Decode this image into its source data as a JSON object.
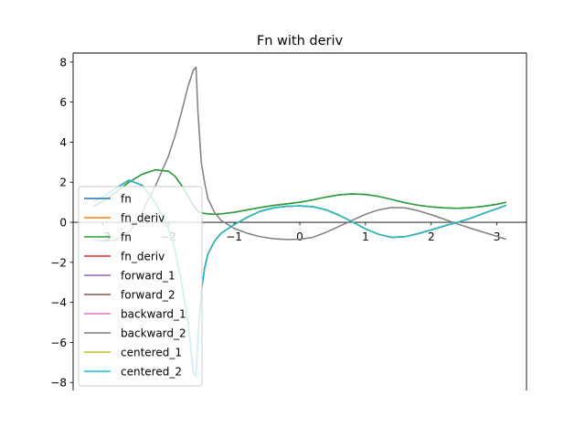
{
  "chart_data": {
    "type": "line",
    "title": "Fn with deriv",
    "xlabel": "",
    "ylabel": "",
    "xlim": [
      -3.45,
      3.45
    ],
    "ylim": [
      -8.4,
      8.45
    ],
    "xticks": [
      -3,
      -2,
      -1,
      0,
      1,
      2,
      3
    ],
    "yticks": [
      -8,
      -6,
      -4,
      -2,
      0,
      2,
      4,
      6,
      8
    ],
    "xtick_labels": [
      "−3",
      "−2",
      "−1",
      "0",
      "1",
      "2",
      "3"
    ],
    "ytick_labels": [
      "−8",
      "−6",
      "−4",
      "−2",
      "0",
      "2",
      "4",
      "6",
      "8"
    ],
    "spines": "centered at origin",
    "grid": false,
    "legend_position": "lower-left",
    "x": [
      -3.14,
      -3.0,
      -2.8,
      -2.6,
      -2.4,
      -2.2,
      -2.0,
      -1.9,
      -1.8,
      -1.7,
      -1.62,
      -1.58,
      -1.55,
      -1.5,
      -1.45,
      -1.4,
      -1.3,
      -1.2,
      -1.0,
      -0.8,
      -0.6,
      -0.4,
      -0.2,
      0.0,
      0.2,
      0.4,
      0.6,
      0.8,
      1.0,
      1.2,
      1.4,
      1.6,
      1.8,
      2.0,
      2.2,
      2.4,
      2.6,
      2.8,
      3.0,
      3.14
    ],
    "series": [
      {
        "name": "fn",
        "color": "#1f77b4",
        "values": [
          0.8,
          1.05,
          1.5,
          2.0,
          2.4,
          2.62,
          2.55,
          2.3,
          1.85,
          1.3,
          0.85,
          0.65,
          0.55,
          0.48,
          0.44,
          0.42,
          0.4,
          0.42,
          0.5,
          0.62,
          0.74,
          0.84,
          0.92,
          1.0,
          1.12,
          1.26,
          1.37,
          1.42,
          1.39,
          1.29,
          1.14,
          0.98,
          0.85,
          0.77,
          0.72,
          0.7,
          0.73,
          0.8,
          0.9,
          1.0
        ]
      },
      {
        "name": "fn_deriv",
        "color": "#ff7f0e",
        "values": [
          1.05,
          1.25,
          1.7,
          2.1,
          1.85,
          1.0,
          -0.3,
          -1.4,
          -3.0,
          -5.0,
          -7.5,
          -7.7,
          -5.8,
          -3.5,
          -2.3,
          -1.6,
          -0.95,
          -0.55,
          -0.12,
          0.25,
          0.55,
          0.72,
          0.8,
          0.82,
          0.78,
          0.62,
          0.35,
          0.02,
          -0.33,
          -0.6,
          -0.75,
          -0.72,
          -0.57,
          -0.38,
          -0.18,
          0.0,
          0.2,
          0.45,
          0.68,
          0.85
        ]
      },
      {
        "name": "fn",
        "color": "#2ca02c",
        "values": [
          0.8,
          1.05,
          1.5,
          2.0,
          2.4,
          2.62,
          2.55,
          2.3,
          1.85,
          1.3,
          0.85,
          0.65,
          0.55,
          0.48,
          0.44,
          0.42,
          0.4,
          0.42,
          0.5,
          0.62,
          0.74,
          0.84,
          0.92,
          1.0,
          1.12,
          1.26,
          1.37,
          1.42,
          1.39,
          1.29,
          1.14,
          0.98,
          0.85,
          0.77,
          0.72,
          0.7,
          0.73,
          0.8,
          0.9,
          1.0
        ]
      },
      {
        "name": "fn_deriv",
        "color": "#d62728",
        "values": [
          1.05,
          1.25,
          1.7,
          2.1,
          1.85,
          1.0,
          -0.3,
          -1.4,
          -3.0,
          -5.0,
          -7.5,
          -7.7,
          -5.8,
          -3.5,
          -2.3,
          -1.6,
          -0.95,
          -0.55,
          -0.12,
          0.25,
          0.55,
          0.72,
          0.8,
          0.82,
          0.78,
          0.62,
          0.35,
          0.02,
          -0.33,
          -0.6,
          -0.75,
          -0.72,
          -0.57,
          -0.38,
          -0.18,
          0.0,
          0.2,
          0.45,
          0.68,
          0.85
        ]
      },
      {
        "name": "forward_1",
        "color": "#9467bd",
        "values": [
          1.05,
          1.25,
          1.7,
          2.1,
          1.85,
          1.0,
          -0.3,
          -1.4,
          -3.0,
          -5.0,
          -7.5,
          -7.7,
          -5.8,
          -3.5,
          -2.3,
          -1.6,
          -0.95,
          -0.55,
          -0.12,
          0.25,
          0.55,
          0.72,
          0.8,
          0.82,
          0.78,
          0.62,
          0.35,
          0.02,
          -0.33,
          -0.6,
          -0.75,
          -0.72,
          -0.57,
          -0.38,
          -0.18,
          0.0,
          0.2,
          0.45,
          0.68,
          0.85
        ]
      },
      {
        "name": "forward_2",
        "color": "#8c564b",
        "values": [
          1.05,
          1.25,
          1.7,
          2.1,
          1.85,
          1.0,
          -0.3,
          -1.4,
          -3.0,
          -5.0,
          -7.5,
          -7.7,
          -5.8,
          -3.5,
          -2.3,
          -1.6,
          -0.95,
          -0.55,
          -0.12,
          0.25,
          0.55,
          0.72,
          0.8,
          0.82,
          0.78,
          0.62,
          0.35,
          0.02,
          -0.33,
          -0.6,
          -0.75,
          -0.72,
          -0.57,
          -0.38,
          -0.18,
          0.0,
          0.2,
          0.45,
          0.68,
          0.85
        ]
      },
      {
        "name": "backward_1",
        "color": "#e377c2",
        "values": [
          1.05,
          1.25,
          1.7,
          2.1,
          1.85,
          1.0,
          -0.3,
          -1.4,
          -3.0,
          -5.0,
          -7.5,
          -7.7,
          -5.8,
          -3.5,
          -2.3,
          -1.6,
          -0.95,
          -0.55,
          -0.12,
          0.25,
          0.55,
          0.72,
          0.8,
          0.82,
          0.78,
          0.62,
          0.35,
          0.02,
          -0.33,
          -0.6,
          -0.75,
          -0.72,
          -0.57,
          -0.38,
          -0.18,
          0.0,
          0.2,
          0.45,
          0.68,
          0.85
        ]
      },
      {
        "name": "backward_2",
        "color": "#7f7f7f",
        "values": [
          -0.85,
          -0.95,
          -0.9,
          -0.5,
          0.5,
          1.8,
          3.3,
          4.3,
          5.5,
          6.8,
          7.6,
          7.75,
          5.5,
          3.0,
          2.0,
          1.2,
          0.5,
          0.1,
          -0.3,
          -0.55,
          -0.72,
          -0.82,
          -0.86,
          -0.85,
          -0.75,
          -0.5,
          -0.2,
          0.1,
          0.4,
          0.62,
          0.74,
          0.72,
          0.58,
          0.38,
          0.15,
          -0.08,
          -0.3,
          -0.5,
          -0.7,
          -0.85
        ]
      },
      {
        "name": "centered_1",
        "color": "#bcbd22",
        "values": [
          1.05,
          1.25,
          1.7,
          2.1,
          1.85,
          1.0,
          -0.3,
          -1.4,
          -3.0,
          -5.0,
          -7.5,
          -7.7,
          -5.8,
          -3.5,
          -2.3,
          -1.6,
          -0.95,
          -0.55,
          -0.12,
          0.25,
          0.55,
          0.72,
          0.8,
          0.82,
          0.78,
          0.62,
          0.35,
          0.02,
          -0.33,
          -0.6,
          -0.75,
          -0.72,
          -0.57,
          -0.38,
          -0.18,
          0.0,
          0.2,
          0.45,
          0.68,
          0.85
        ]
      },
      {
        "name": "centered_2",
        "color": "#17becf",
        "values": [
          1.05,
          1.25,
          1.7,
          2.1,
          1.85,
          1.0,
          -0.3,
          -1.4,
          -3.0,
          -5.0,
          -7.5,
          -7.7,
          -5.8,
          -3.5,
          -2.3,
          -1.6,
          -0.95,
          -0.55,
          -0.12,
          0.25,
          0.55,
          0.72,
          0.8,
          0.82,
          0.78,
          0.62,
          0.35,
          0.02,
          -0.33,
          -0.6,
          -0.75,
          -0.72,
          -0.57,
          -0.38,
          -0.18,
          0.0,
          0.2,
          0.45,
          0.68,
          0.85
        ]
      }
    ]
  }
}
